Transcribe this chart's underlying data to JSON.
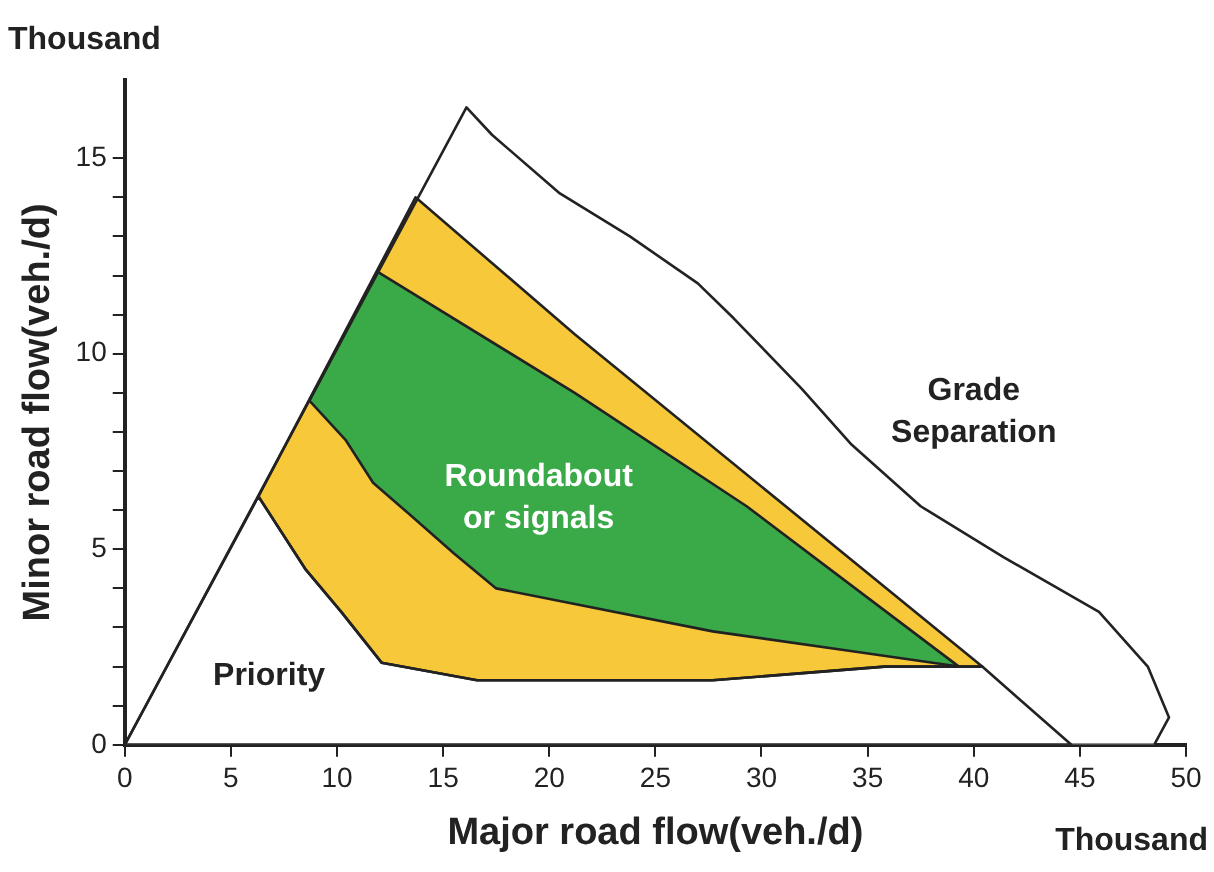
{
  "chart_data": {
    "type": "area",
    "xlabel": "Major road flow(veh./d)",
    "ylabel": "Minor road flow(veh./d)",
    "xlim": [
      0,
      50
    ],
    "ylim": [
      0,
      17
    ],
    "xticks": [
      0,
      5,
      10,
      15,
      20,
      25,
      30,
      35,
      40,
      45,
      50
    ],
    "yticks": [
      0,
      {
        "value": 1,
        "label": null
      },
      {
        "value": 2,
        "label": null
      },
      {
        "value": 3,
        "label": null
      },
      {
        "value": 4,
        "label": null
      },
      5,
      {
        "value": 6,
        "label": null
      },
      {
        "value": 7,
        "label": null
      },
      {
        "value": 8,
        "label": null
      },
      {
        "value": 9,
        "label": null
      },
      10,
      {
        "value": 11,
        "label": null
      },
      {
        "value": 12,
        "label": null
      },
      {
        "value": 13,
        "label": null
      },
      {
        "value": 14,
        "label": null
      },
      15
    ],
    "grid": false,
    "legend": false,
    "series": [
      {
        "color": "#ffffff",
        "x": [
          0,
          16.1,
          17.3,
          20.5,
          23.8,
          27,
          28.7,
          31.9,
          34.2,
          37.5,
          41.4,
          45.9,
          48.2,
          49.2,
          48.5,
          0
        ],
        "values": [
          0,
          16.3,
          15.6,
          14.1,
          13.0,
          11.8,
          10.9,
          9.1,
          7.7,
          6.1,
          4.8,
          3.4,
          2.0,
          0.7,
          0,
          0
        ]
      },
      {
        "color": "#ffffff",
        "x": [
          0,
          6.3,
          8.5,
          10.2,
          12.1,
          16.6,
          27.7,
          35.8,
          40.4,
          44.6,
          0
        ],
        "values": [
          0,
          6.35,
          4.5,
          3.4,
          2.1,
          1.65,
          1.65,
          2.0,
          2.0,
          0,
          0
        ]
      },
      {
        "color": "#f7c93a",
        "x": [
          6.3,
          13.7,
          21.2,
          40.4,
          35.8,
          27.7,
          16.6,
          12.1,
          10.2,
          8.5,
          6.3
        ],
        "values": [
          6.35,
          14.0,
          10.5,
          2.0,
          2.0,
          1.65,
          1.65,
          2.1,
          3.4,
          4.5,
          6.35
        ]
      },
      {
        "color": "#3aaa48",
        "x": [
          11.9,
          21.2,
          29.3,
          39.3,
          34.2,
          27.7,
          17.5,
          15.5,
          13.4,
          11.7,
          10.4,
          8.7,
          11.9
        ],
        "values": [
          12.1,
          9.0,
          6.1,
          2.0,
          2.4,
          2.9,
          4.0,
          4.9,
          5.9,
          6.7,
          7.8,
          8.8,
          12.1
        ]
      }
    ],
    "annotations": [
      "Thousand",
      "Thousand",
      "Priority",
      "Roundabout or signals",
      "Grade Separation"
    ]
  }
}
